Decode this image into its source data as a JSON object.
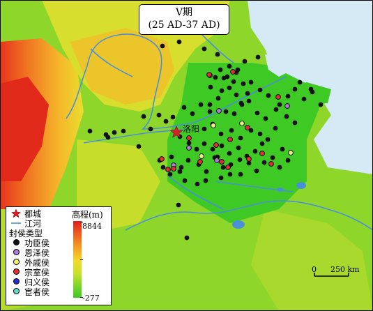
{
  "title": {
    "line1": "V期",
    "line2": "(25 AD-37 AD)"
  },
  "capital_label": "洛阳",
  "legend": {
    "capital": "都城",
    "river": "江河",
    "category_heading": "封侯类型",
    "categories": [
      {
        "label": "功臣侯",
        "color": "#111111"
      },
      {
        "label": "恩泽侯",
        "color": "#b07ad8"
      },
      {
        "label": "外戚侯",
        "color": "#f2f07a"
      },
      {
        "label": "宗室侯",
        "color": "#e03030"
      },
      {
        "label": "归义侯",
        "color": "#2a2ad6"
      },
      {
        "label": "宦者侯",
        "color": "#66d9c6"
      }
    ],
    "elevation_title": "高程(m)",
    "elevation_max": "8844",
    "elevation_min": "-277"
  },
  "scale": {
    "zero": "0",
    "distance": "250 km"
  },
  "colors": {
    "river": "#4a90d9",
    "sea": "#d6eaf5",
    "lowland": "#3ec924"
  },
  "points": {
    "gongchen": [
      [
        233,
        66
      ],
      [
        257,
        60
      ],
      [
        293,
        70
      ],
      [
        312,
        78
      ],
      [
        329,
        95
      ],
      [
        339,
        104
      ],
      [
        309,
        111
      ],
      [
        321,
        112
      ],
      [
        341,
        100
      ],
      [
        351,
        88
      ],
      [
        370,
        82
      ],
      [
        318,
        130
      ],
      [
        329,
        126
      ],
      [
        339,
        136
      ],
      [
        346,
        148
      ],
      [
        355,
        134
      ],
      [
        360,
        118
      ],
      [
        373,
        129
      ],
      [
        385,
        137
      ],
      [
        401,
        150
      ],
      [
        413,
        138
      ],
      [
        423,
        128
      ],
      [
        436,
        142
      ],
      [
        448,
        132
      ],
      [
        460,
        150
      ],
      [
        430,
        118
      ],
      [
        446,
        128
      ],
      [
        302,
        125
      ],
      [
        313,
        141
      ],
      [
        324,
        160
      ],
      [
        336,
        163
      ],
      [
        347,
        150
      ],
      [
        357,
        145
      ],
      [
        369,
        162
      ],
      [
        381,
        170
      ],
      [
        396,
        157
      ],
      [
        411,
        167
      ],
      [
        423,
        176
      ],
      [
        301,
        160
      ],
      [
        288,
        150
      ],
      [
        276,
        163
      ],
      [
        264,
        154
      ],
      [
        248,
        168
      ],
      [
        228,
        165
      ],
      [
        258,
        196
      ],
      [
        271,
        205
      ],
      [
        282,
        214
      ],
      [
        293,
        206
      ],
      [
        305,
        214
      ],
      [
        318,
        209
      ],
      [
        329,
        220
      ],
      [
        342,
        212
      ],
      [
        354,
        224
      ],
      [
        366,
        217
      ],
      [
        376,
        206
      ],
      [
        391,
        226
      ],
      [
        405,
        214
      ],
      [
        270,
        230
      ],
      [
        285,
        236
      ],
      [
        296,
        246
      ],
      [
        308,
        226
      ],
      [
        320,
        240
      ],
      [
        331,
        236
      ],
      [
        344,
        229
      ],
      [
        357,
        234
      ],
      [
        368,
        245
      ],
      [
        379,
        233
      ],
      [
        401,
        240
      ],
      [
        413,
        230
      ],
      [
        246,
        225
      ],
      [
        234,
        240
      ],
      [
        244,
        250
      ],
      [
        258,
        246
      ],
      [
        265,
        259
      ],
      [
        283,
        264
      ],
      [
        295,
        259
      ],
      [
        330,
        250
      ],
      [
        345,
        250
      ],
      [
        256,
        294
      ],
      [
        268,
        341
      ],
      [
        152,
        193
      ],
      [
        164,
        190
      ],
      [
        177,
        188
      ],
      [
        155,
        197
      ],
      [
        199,
        210
      ],
      [
        129,
        188
      ],
      [
        216,
        185
      ],
      [
        238,
        174
      ],
      [
        206,
        167
      ],
      [
        305,
        178
      ],
      [
        317,
        192
      ],
      [
        332,
        187
      ],
      [
        345,
        198
      ],
      [
        360,
        187
      ],
      [
        373,
        192
      ],
      [
        384,
        200
      ],
      [
        395,
        184
      ],
      [
        316,
        100
      ],
      [
        326,
        110
      ],
      [
        335,
        117
      ],
      [
        349,
        120
      ],
      [
        301,
        150
      ],
      [
        293,
        185
      ],
      [
        312,
        225
      ],
      [
        260,
        240
      ],
      [
        229,
        230
      ],
      [
        317,
        255
      ]
    ],
    "enze": [
      [
        314,
        159
      ],
      [
        301,
        108
      ],
      [
        412,
        152
      ],
      [
        271,
        212
      ],
      [
        249,
        237
      ],
      [
        311,
        230
      ]
    ],
    "waiqi": [
      [
        306,
        180
      ],
      [
        347,
        177
      ],
      [
        417,
        219
      ],
      [
        289,
        224
      ]
    ],
    "zongshi": [
      [
        300,
        107
      ],
      [
        334,
        103
      ],
      [
        355,
        183
      ],
      [
        399,
        139
      ],
      [
        330,
        200
      ],
      [
        376,
        220
      ],
      [
        232,
        228
      ],
      [
        249,
        242
      ],
      [
        287,
        232
      ],
      [
        271,
        198
      ],
      [
        310,
        208
      ],
      [
        327,
        240
      ],
      [
        389,
        235
      ],
      [
        241,
        243
      ],
      [
        318,
        232
      ],
      [
        357,
        228
      ]
    ],
    "guiyi": [],
    "huanzhe": []
  }
}
